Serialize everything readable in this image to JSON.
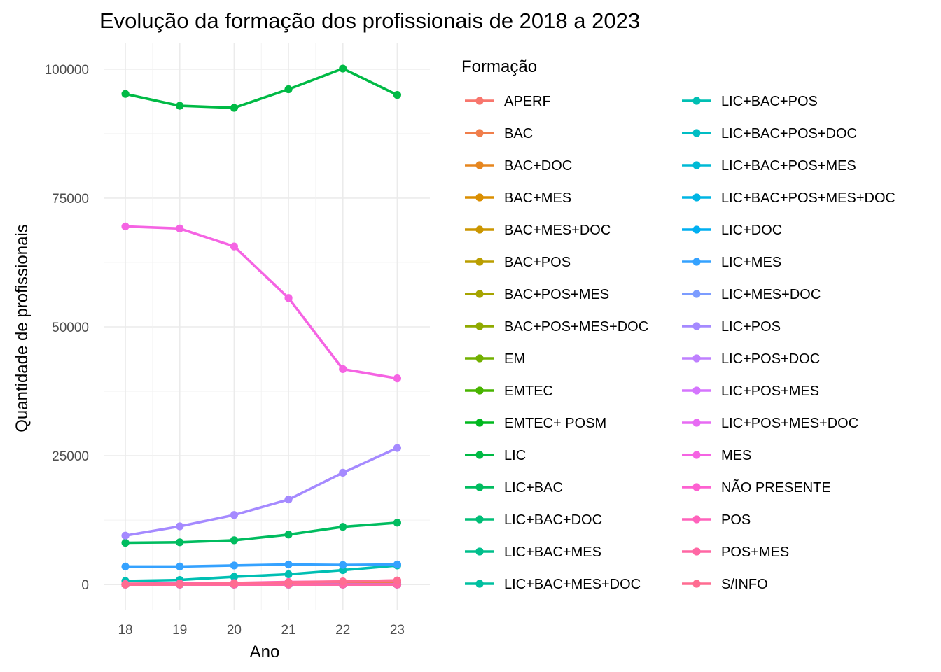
{
  "chart_data": {
    "type": "line",
    "title": "Evolução da formação dos profissionais de 2018 a 2023",
    "xlabel": "Ano",
    "ylabel": "Quantidade de profissionais",
    "x": [
      18,
      19,
      20,
      21,
      22,
      23
    ],
    "xlim": [
      17.6,
      23.6
    ],
    "ylim": [
      -5000,
      105000
    ],
    "yticks": [
      0,
      25000,
      50000,
      75000,
      100000
    ],
    "ytick_labels": [
      "0",
      "25000",
      "50000",
      "75000",
      "100000"
    ],
    "grid": true,
    "legend_title": "Formação",
    "legend_position": "right",
    "series": [
      {
        "name": "APERF",
        "color": "#F8766D",
        "values": [
          0,
          0,
          0,
          0,
          0,
          0
        ]
      },
      {
        "name": "BAC",
        "color": "#F07E4B",
        "values": [
          150,
          200,
          250,
          300,
          350,
          450
        ]
      },
      {
        "name": "BAC+DOC",
        "color": "#E6861F",
        "values": [
          0,
          0,
          0,
          0,
          0,
          0
        ]
      },
      {
        "name": "BAC+MES",
        "color": "#DA8E00",
        "values": [
          0,
          0,
          0,
          0,
          0,
          0
        ]
      },
      {
        "name": "BAC+MES+DOC",
        "color": "#CB9600",
        "values": [
          0,
          0,
          0,
          0,
          0,
          0
        ]
      },
      {
        "name": "BAC+POS",
        "color": "#BA9E00",
        "values": [
          0,
          0,
          0,
          0,
          0,
          0
        ]
      },
      {
        "name": "BAC+POS+MES",
        "color": "#A6A400",
        "values": [
          0,
          0,
          0,
          0,
          0,
          0
        ]
      },
      {
        "name": "BAC+POS+MES+DOC",
        "color": "#8FAA00",
        "values": [
          0,
          0,
          0,
          0,
          0,
          0
        ]
      },
      {
        "name": "EM",
        "color": "#72B000",
        "values": [
          0,
          0,
          0,
          0,
          0,
          0
        ]
      },
      {
        "name": "EMTEC",
        "color": "#48B400",
        "values": [
          0,
          0,
          0,
          0,
          0,
          0
        ]
      },
      {
        "name": "EMTEC+ POSM",
        "color": "#00B81F",
        "values": [
          0,
          0,
          0,
          0,
          0,
          0
        ]
      },
      {
        "name": "LIC",
        "color": "#00BA45",
        "values": [
          95200,
          92900,
          92500,
          96100,
          100100,
          95000
        ]
      },
      {
        "name": "LIC+BAC",
        "color": "#00BC5F",
        "values": [
          8100,
          8200,
          8600,
          9700,
          11200,
          12000
        ]
      },
      {
        "name": "LIC+BAC+DOC",
        "color": "#00BE77",
        "values": [
          0,
          0,
          0,
          0,
          0,
          0
        ]
      },
      {
        "name": "LIC+BAC+MES",
        "color": "#00BF8C",
        "values": [
          0,
          0,
          0,
          0,
          0,
          0
        ]
      },
      {
        "name": "LIC+BAC+MES+DOC",
        "color": "#00C0A0",
        "values": [
          0,
          0,
          0,
          0,
          0,
          0
        ]
      },
      {
        "name": "LIC+BAC+POS",
        "color": "#00BFB3",
        "values": [
          700,
          900,
          1500,
          2000,
          2800,
          3700
        ]
      },
      {
        "name": "LIC+BAC+POS+DOC",
        "color": "#00BDC4",
        "values": [
          0,
          0,
          0,
          0,
          0,
          0
        ]
      },
      {
        "name": "LIC+BAC+POS+MES",
        "color": "#00BAD5",
        "values": [
          0,
          0,
          0,
          0,
          0,
          0
        ]
      },
      {
        "name": "LIC+BAC+POS+MES+DOC",
        "color": "#00B5E4",
        "values": [
          0,
          0,
          0,
          0,
          0,
          0
        ]
      },
      {
        "name": "LIC+DOC",
        "color": "#00AFF1",
        "values": [
          0,
          0,
          0,
          0,
          0,
          0
        ]
      },
      {
        "name": "LIC+MES",
        "color": "#35A2FF",
        "values": [
          3500,
          3500,
          3700,
          3900,
          3800,
          3900
        ]
      },
      {
        "name": "LIC+MES+DOC",
        "color": "#7C9CFF",
        "values": [
          0,
          0,
          0,
          0,
          0,
          0
        ]
      },
      {
        "name": "LIC+POS",
        "color": "#A58AFF",
        "values": [
          9500,
          11300,
          13500,
          16500,
          21700,
          26500
        ]
      },
      {
        "name": "LIC+POS+DOC",
        "color": "#BF80FF",
        "values": [
          0,
          0,
          0,
          0,
          0,
          0
        ]
      },
      {
        "name": "LIC+POS+MES",
        "color": "#D575FE",
        "values": [
          0,
          0,
          0,
          0,
          0,
          0
        ]
      },
      {
        "name": "LIC+POS+MES+DOC",
        "color": "#E76BF3",
        "values": [
          0,
          0,
          0,
          0,
          0,
          0
        ]
      },
      {
        "name": "MES",
        "color": "#F564E3",
        "values": [
          69500,
          69100,
          65600,
          55600,
          41800,
          40000
        ]
      },
      {
        "name": "NÃO PRESENTE",
        "color": "#FD61D1",
        "values": [
          0,
          0,
          0,
          0,
          0,
          0
        ]
      },
      {
        "name": "POS",
        "color": "#FF62BC",
        "values": [
          100,
          200,
          300,
          500,
          600,
          800
        ]
      },
      {
        "name": "POS+MES",
        "color": "#FF67A4",
        "values": [
          0,
          0,
          0,
          0,
          0,
          0
        ]
      },
      {
        "name": "S/INFO",
        "color": "#FF6C91",
        "values": [
          0,
          100,
          200,
          400,
          600,
          800
        ]
      }
    ]
  }
}
